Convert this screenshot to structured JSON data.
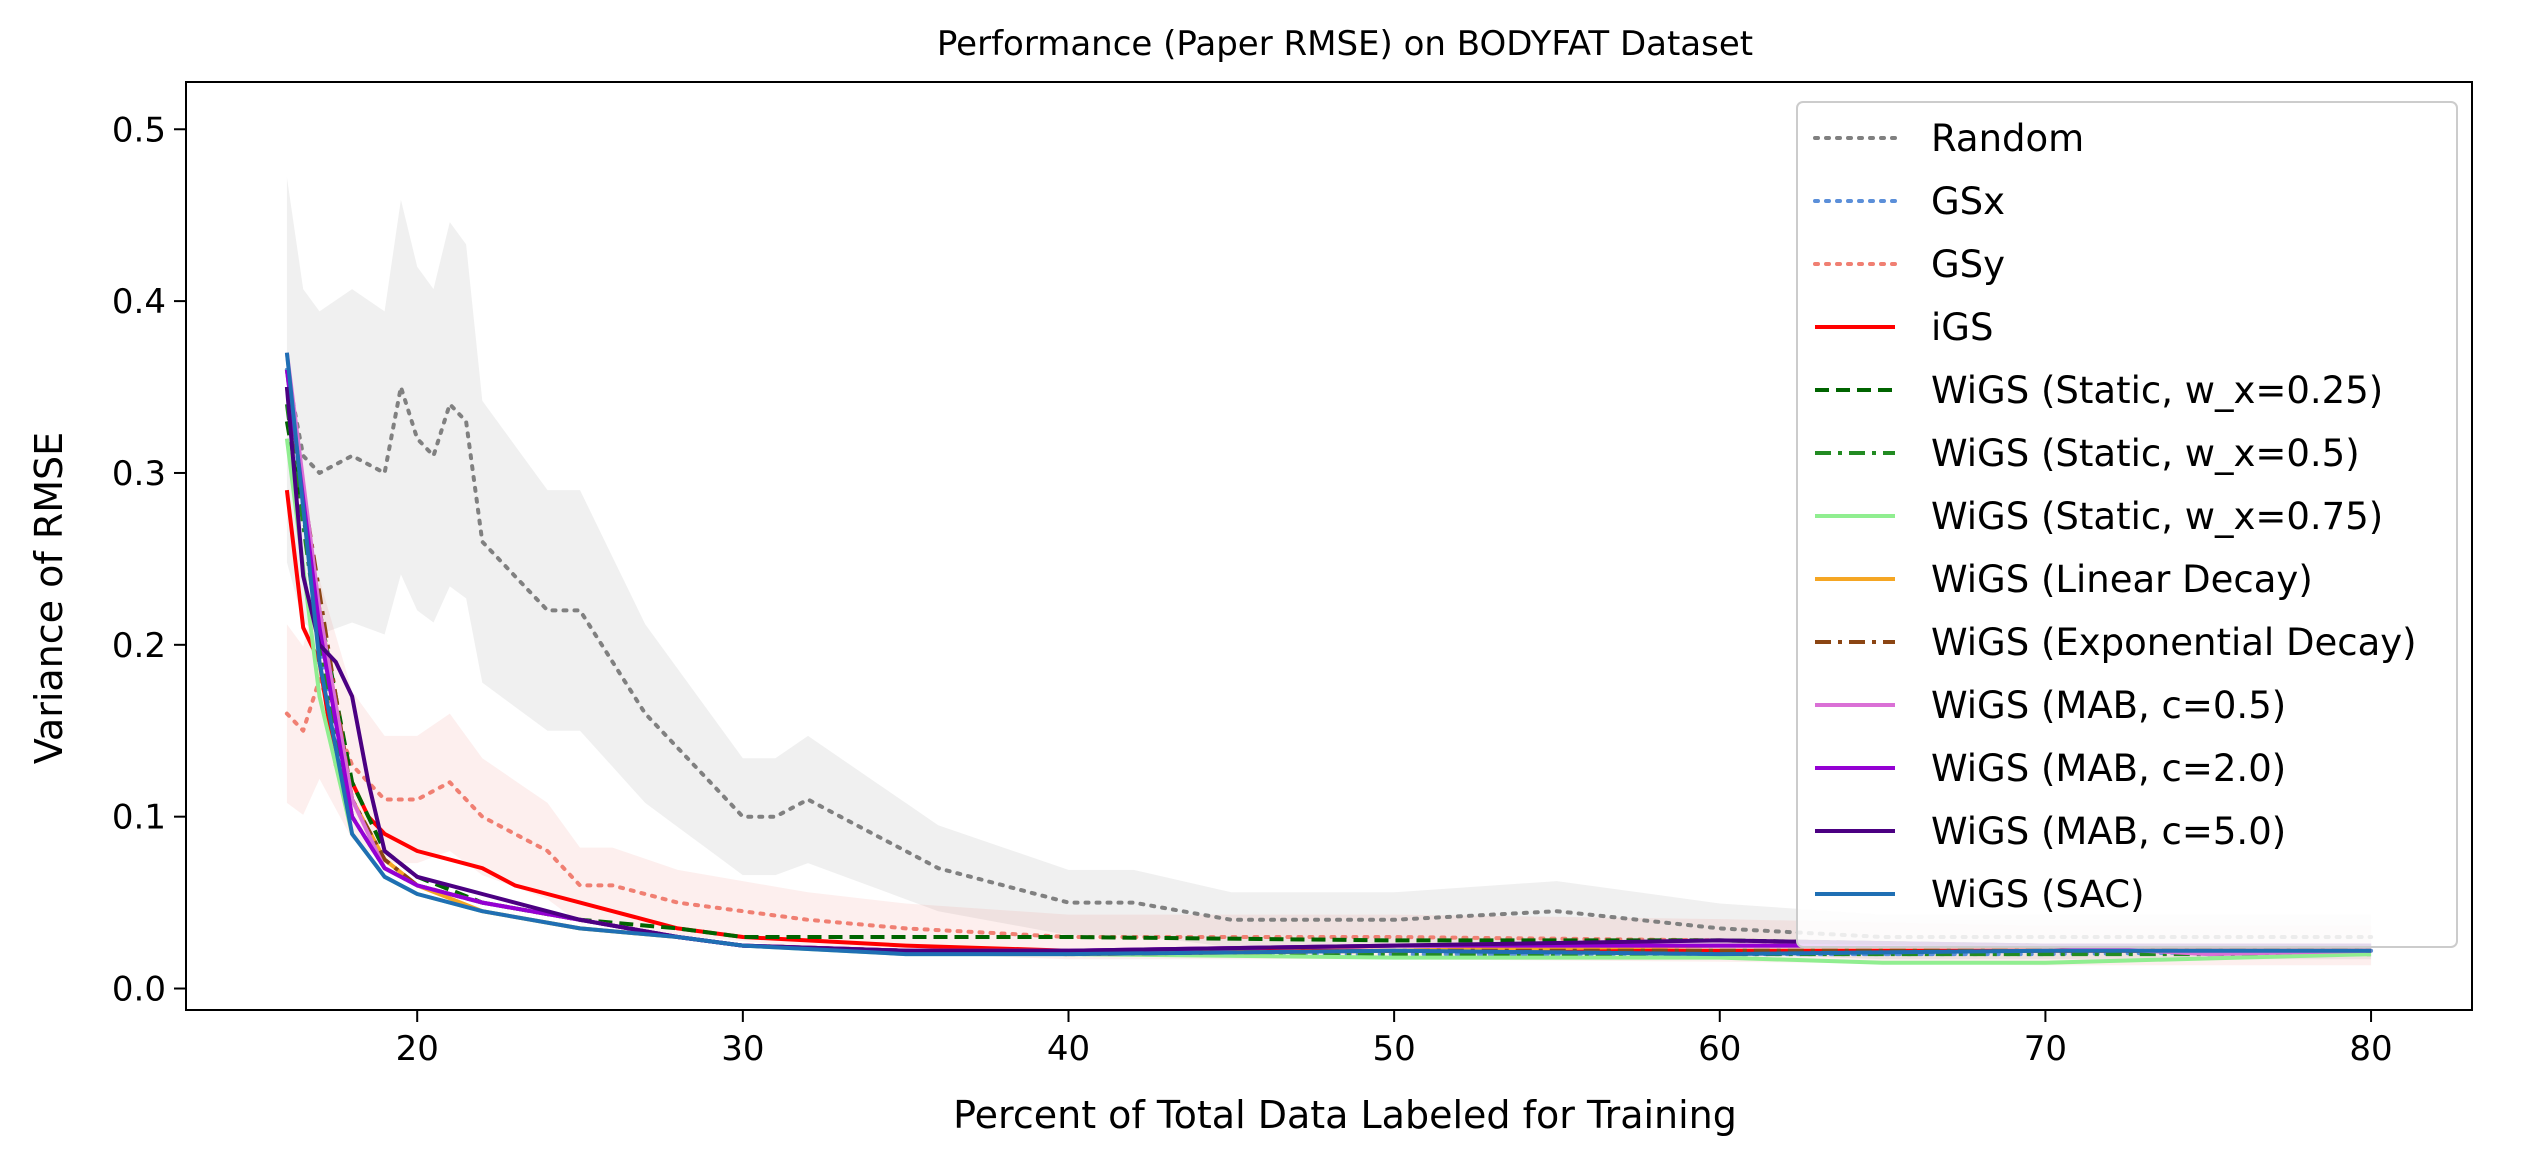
{
  "chart_data": {
    "type": "line",
    "title": "Performance (Paper RMSE) on BODYFAT Dataset",
    "xlabel": "Percent of Total Data Labeled for Training",
    "ylabel": "Variance of RMSE",
    "xlim": [
      12.9,
      83.1
    ],
    "ylim": [
      -0.0125,
      0.5275
    ],
    "xticks": [
      20,
      30,
      40,
      50,
      60,
      70,
      80
    ],
    "yticks": [
      0.0,
      0.1,
      0.2,
      0.3,
      0.4,
      0.5
    ],
    "xtick_labels": [
      "20",
      "30",
      "40",
      "50",
      "60",
      "70",
      "80"
    ],
    "ytick_labels": [
      "0.0",
      "0.1",
      "0.2",
      "0.3",
      "0.4",
      "0.5"
    ],
    "grid": false,
    "legend_position": "upper right",
    "series": [
      {
        "name": "Random",
        "color": "#808080",
        "style": "dotted",
        "band": true,
        "x": [
          16,
          16.5,
          17,
          18,
          19,
          19.5,
          20,
          20.5,
          21,
          21.5,
          22,
          23,
          24,
          25,
          26,
          27,
          28,
          29,
          30,
          31,
          32,
          33,
          34,
          35,
          36,
          38,
          40,
          42,
          45,
          50,
          55,
          60,
          65,
          70,
          75,
          80
        ],
        "y": [
          0.36,
          0.31,
          0.3,
          0.31,
          0.3,
          0.35,
          0.32,
          0.31,
          0.34,
          0.33,
          0.26,
          0.24,
          0.22,
          0.22,
          0.19,
          0.16,
          0.14,
          0.12,
          0.1,
          0.1,
          0.11,
          0.1,
          0.09,
          0.08,
          0.07,
          0.06,
          0.05,
          0.05,
          0.04,
          0.04,
          0.045,
          0.035,
          0.03,
          0.03,
          0.03,
          0.03
        ]
      },
      {
        "name": "GSx",
        "color": "#5b8fd9",
        "style": "dotted",
        "band": false,
        "x": [
          16,
          17,
          18,
          19,
          20,
          22,
          25,
          28,
          30,
          35,
          40,
          50,
          60,
          70,
          80
        ],
        "y": [
          0.36,
          0.2,
          0.1,
          0.07,
          0.06,
          0.05,
          0.04,
          0.03,
          0.025,
          0.022,
          0.02,
          0.02,
          0.02,
          0.02,
          0.022
        ]
      },
      {
        "name": "GSy",
        "color": "#f07f72",
        "style": "dotted",
        "band": true,
        "x": [
          16,
          16.5,
          17,
          18,
          19,
          20,
          21,
          22,
          23,
          24,
          25,
          26,
          28,
          30,
          32,
          35,
          40,
          50,
          60,
          70,
          80
        ],
        "y": [
          0.16,
          0.15,
          0.18,
          0.13,
          0.11,
          0.11,
          0.12,
          0.1,
          0.09,
          0.08,
          0.06,
          0.06,
          0.05,
          0.045,
          0.04,
          0.035,
          0.03,
          0.03,
          0.028,
          0.025,
          0.025
        ]
      },
      {
        "name": "iGS",
        "color": "#ff0000",
        "style": "solid",
        "band": false,
        "x": [
          16,
          16.5,
          17,
          17.5,
          18,
          18.5,
          19,
          20,
          21,
          22,
          23,
          24,
          25,
          26,
          27,
          28,
          30,
          35,
          40,
          50,
          60,
          70,
          80
        ],
        "y": [
          0.29,
          0.21,
          0.19,
          0.13,
          0.12,
          0.1,
          0.09,
          0.08,
          0.075,
          0.07,
          0.06,
          0.055,
          0.05,
          0.045,
          0.04,
          0.035,
          0.03,
          0.025,
          0.022,
          0.022,
          0.022,
          0.022,
          0.022
        ]
      },
      {
        "name": "WiGS (Static, w_x=0.25)",
        "color": "#006400",
        "style": "dashed",
        "band": false,
        "x": [
          16,
          17,
          18,
          19,
          20,
          22,
          25,
          28,
          30,
          35,
          40,
          50,
          60,
          70,
          80
        ],
        "y": [
          0.33,
          0.22,
          0.12,
          0.08,
          0.065,
          0.05,
          0.04,
          0.035,
          0.03,
          0.03,
          0.03,
          0.028,
          0.028,
          0.025,
          0.025
        ]
      },
      {
        "name": "WiGS (Static, w_x=0.5)",
        "color": "#228b22",
        "style": "dashdot",
        "band": false,
        "x": [
          16,
          17,
          18,
          19,
          20,
          22,
          25,
          28,
          30,
          35,
          40,
          50,
          60,
          70,
          80
        ],
        "y": [
          0.34,
          0.2,
          0.1,
          0.07,
          0.06,
          0.05,
          0.04,
          0.03,
          0.025,
          0.022,
          0.022,
          0.02,
          0.02,
          0.02,
          0.02
        ]
      },
      {
        "name": "WiGS (Static, w_x=0.75)",
        "color": "#90ee90",
        "style": "solid",
        "band": false,
        "x": [
          16,
          17,
          18,
          19,
          20,
          22,
          25,
          28,
          30,
          35,
          40,
          50,
          60,
          65,
          70,
          80
        ],
        "y": [
          0.32,
          0.17,
          0.09,
          0.065,
          0.055,
          0.045,
          0.035,
          0.03,
          0.025,
          0.02,
          0.02,
          0.018,
          0.018,
          0.015,
          0.015,
          0.02
        ]
      },
      {
        "name": "WiGS (Linear Decay)",
        "color": "#f5a623",
        "style": "solid",
        "band": false,
        "x": [
          16,
          17,
          18,
          19,
          20,
          22,
          25,
          28,
          30,
          35,
          40,
          50,
          60,
          70,
          80
        ],
        "y": [
          0.36,
          0.22,
          0.11,
          0.075,
          0.06,
          0.045,
          0.035,
          0.03,
          0.025,
          0.022,
          0.02,
          0.022,
          0.025,
          0.025,
          0.025
        ]
      },
      {
        "name": "WiGS (Exponential Decay)",
        "color": "#8b4513",
        "style": "dashdot",
        "band": false,
        "x": [
          16,
          17,
          18,
          19,
          20,
          22,
          25,
          28,
          30,
          35,
          40,
          50,
          60,
          70,
          80
        ],
        "y": [
          0.35,
          0.23,
          0.11,
          0.075,
          0.06,
          0.05,
          0.04,
          0.03,
          0.025,
          0.022,
          0.02,
          0.022,
          0.022,
          0.022,
          0.022
        ]
      },
      {
        "name": "WiGS (MAB, c=0.5)",
        "color": "#da70d6",
        "style": "solid",
        "band": false,
        "x": [
          16,
          17,
          18,
          19,
          20,
          22,
          25,
          28,
          30,
          35,
          40,
          50,
          60,
          70,
          75,
          80
        ],
        "y": [
          0.37,
          0.22,
          0.11,
          0.07,
          0.06,
          0.05,
          0.04,
          0.03,
          0.025,
          0.022,
          0.022,
          0.025,
          0.025,
          0.025,
          0.02,
          0.022
        ]
      },
      {
        "name": "WiGS (MAB, c=2.0)",
        "color": "#9400d3",
        "style": "solid",
        "band": false,
        "x": [
          16,
          17,
          18,
          19,
          20,
          22,
          25,
          28,
          30,
          35,
          40,
          50,
          60,
          70,
          80
        ],
        "y": [
          0.36,
          0.21,
          0.1,
          0.07,
          0.06,
          0.05,
          0.04,
          0.03,
          0.025,
          0.022,
          0.022,
          0.025,
          0.025,
          0.025,
          0.025
        ]
      },
      {
        "name": "WiGS (MAB, c=5.0)",
        "color": "#4b0082",
        "style": "solid",
        "band": false,
        "x": [
          16,
          16.5,
          17,
          17.5,
          18,
          18.5,
          19,
          20,
          22,
          25,
          28,
          30,
          35,
          40,
          50,
          60,
          70,
          80
        ],
        "y": [
          0.35,
          0.24,
          0.2,
          0.19,
          0.17,
          0.12,
          0.08,
          0.065,
          0.055,
          0.04,
          0.03,
          0.025,
          0.022,
          0.022,
          0.025,
          0.028,
          0.025,
          0.025
        ]
      },
      {
        "name": "WiGS (SAC)",
        "color": "#1f6fb4",
        "style": "solid",
        "band": false,
        "x": [
          16,
          17,
          18,
          19,
          20,
          22,
          25,
          28,
          30,
          35,
          40,
          50,
          60,
          70,
          80
        ],
        "y": [
          0.37,
          0.19,
          0.09,
          0.065,
          0.055,
          0.045,
          0.035,
          0.03,
          0.025,
          0.02,
          0.02,
          0.022,
          0.02,
          0.022,
          0.022
        ]
      }
    ]
  }
}
